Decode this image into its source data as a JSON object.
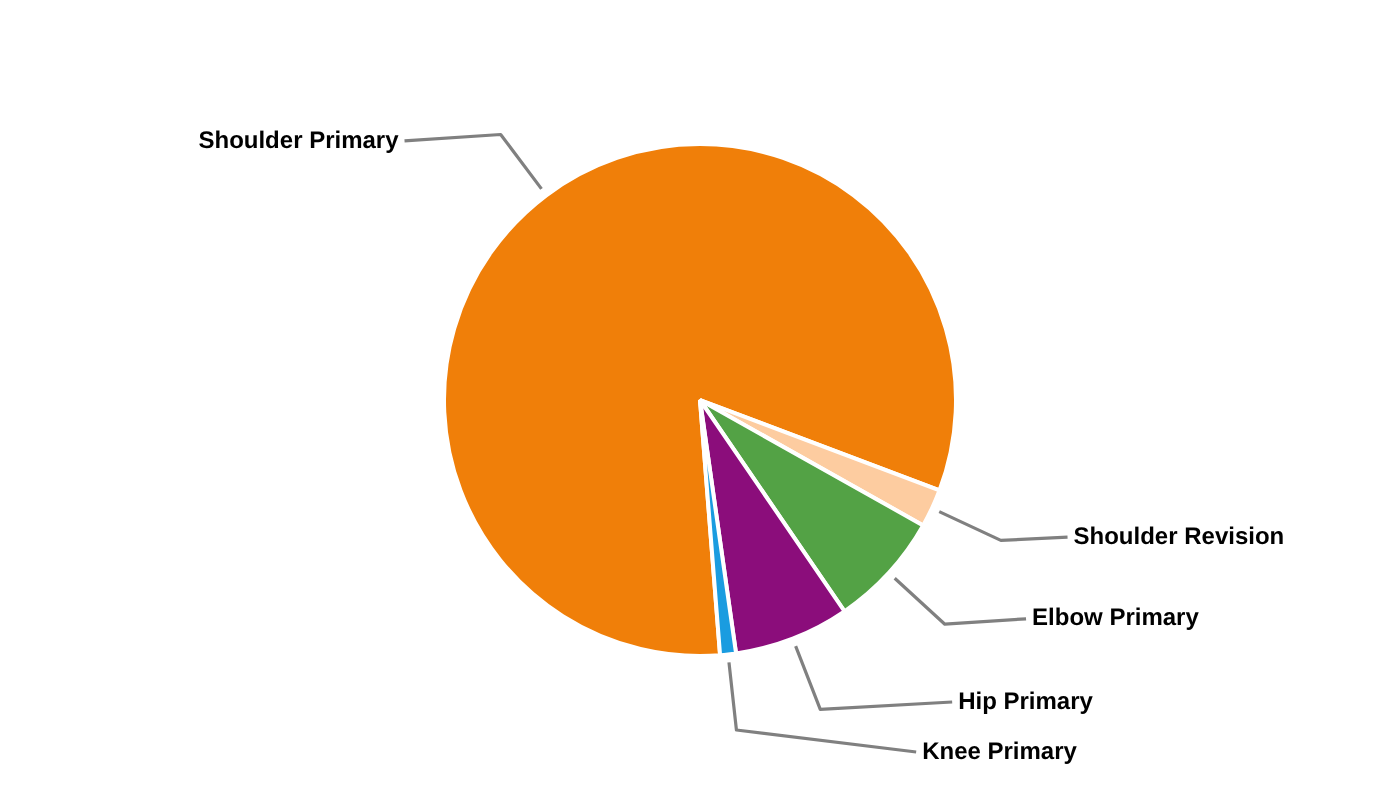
{
  "chart_data": {
    "type": "pie",
    "categories": [
      "Shoulder Primary",
      "Shoulder Revision",
      "Elbow Primary",
      "Hip Primary",
      "Knee Primary"
    ],
    "values": [
      82,
      2.4,
      7.3,
      7.3,
      1.0
    ],
    "colors": [
      "#f07f09",
      "#fdcca0",
      "#53a245",
      "#8b0d7b",
      "#1a9ce0"
    ]
  }
}
